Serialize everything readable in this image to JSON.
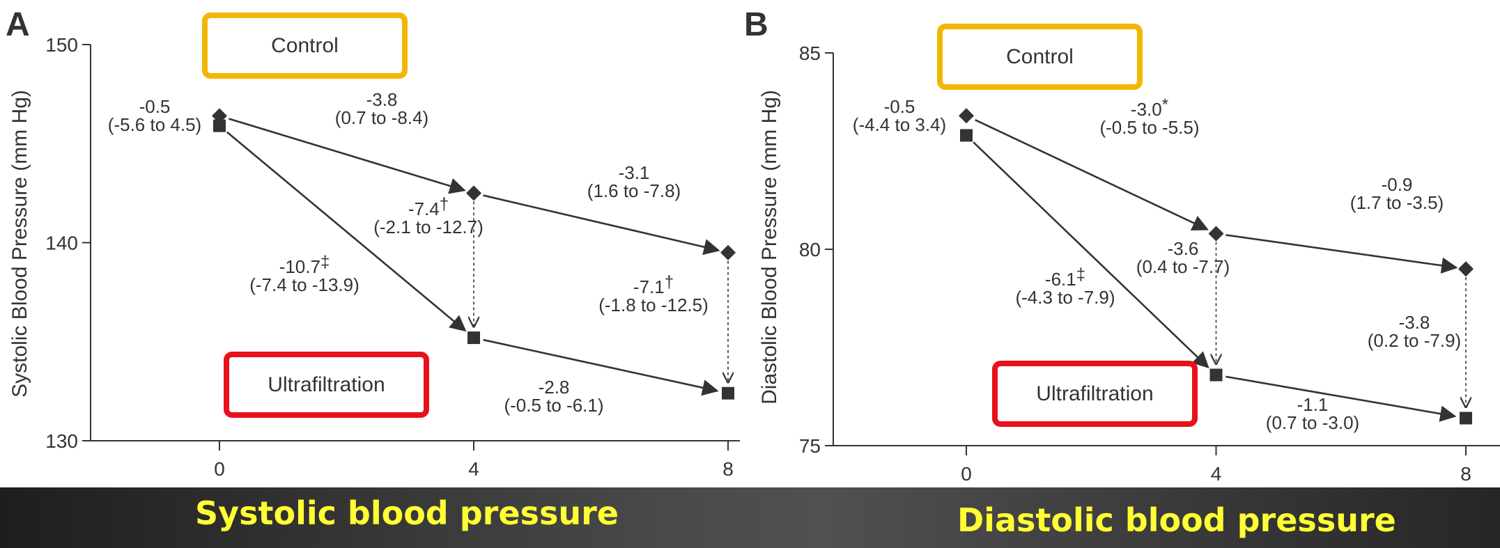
{
  "chart_data": [
    {
      "type": "line",
      "panel_label": "A",
      "ylabel": "Systolic Blood Pressure (mm Hg)",
      "xlabel": "",
      "x": [
        0,
        4,
        8
      ],
      "x_ticks": [
        "0",
        "4",
        "8"
      ],
      "ylim": [
        130,
        150
      ],
      "y_ticks": [
        "130",
        "140",
        "150"
      ],
      "legend_placement": "boxed labels near series",
      "series": [
        {
          "name": "Control",
          "marker": "diamond",
          "values": [
            146.4,
            142.5,
            139.5
          ]
        },
        {
          "name": "Ultrafiltration",
          "marker": "square",
          "values": [
            145.9,
            135.2,
            132.4
          ]
        }
      ],
      "annotations": [
        {
          "id": "a0",
          "lines": [
            "-0.5",
            "(-5.6 to 4.5)"
          ],
          "mark": ""
        },
        {
          "id": "a1",
          "lines": [
            "-3.8",
            "(0.7 to -8.4)"
          ],
          "mark": ""
        },
        {
          "id": "a2",
          "lines": [
            "-3.1",
            "(1.6 to -7.8)"
          ],
          "mark": ""
        },
        {
          "id": "a3",
          "lines": [
            "-7.4",
            "(-2.1 to -12.7)"
          ],
          "mark": "†"
        },
        {
          "id": "a4",
          "lines": [
            "-10.7",
            "(-7.4 to -13.9)"
          ],
          "mark": "‡"
        },
        {
          "id": "a5",
          "lines": [
            "-7.1",
            "(-1.8 to -12.5)"
          ],
          "mark": "†"
        },
        {
          "id": "a6",
          "lines": [
            "-2.8",
            "(-0.5 to -6.1)"
          ],
          "mark": ""
        }
      ]
    },
    {
      "type": "line",
      "panel_label": "B",
      "ylabel": "Diastolic Blood Pressure (mm Hg)",
      "xlabel": "",
      "x": [
        0,
        4,
        8
      ],
      "x_ticks": [
        "0",
        "4",
        "8"
      ],
      "ylim": [
        75,
        85
      ],
      "y_ticks": [
        "75",
        "80",
        "85"
      ],
      "legend_placement": "boxed labels near series",
      "series": [
        {
          "name": "Control",
          "marker": "diamond",
          "values": [
            83.4,
            80.4,
            79.5
          ]
        },
        {
          "name": "Ultrafiltration",
          "marker": "square",
          "values": [
            82.9,
            76.8,
            75.7
          ]
        }
      ],
      "annotations": [
        {
          "id": "b0",
          "lines": [
            "-0.5",
            "(-4.4 to 3.4)"
          ],
          "mark": ""
        },
        {
          "id": "b1",
          "lines": [
            "-3.0",
            "(-0.5 to -5.5)"
          ],
          "mark": "*"
        },
        {
          "id": "b2",
          "lines": [
            "-0.9",
            "(1.7 to -3.5)"
          ],
          "mark": ""
        },
        {
          "id": "b3",
          "lines": [
            "-3.6",
            "(0.4 to -7.7)"
          ],
          "mark": ""
        },
        {
          "id": "b4",
          "lines": [
            "-6.1",
            "(-4.3 to -7.9)"
          ],
          "mark": "‡"
        },
        {
          "id": "b5",
          "lines": [
            "-3.8",
            "(0.2 to -7.9)"
          ],
          "mark": ""
        },
        {
          "id": "b6",
          "lines": [
            "-1.1",
            "(0.7 to -3.0)"
          ],
          "mark": ""
        }
      ]
    }
  ],
  "captions": {
    "left": "Systolic blood pressure",
    "right": "Diastolic blood pressure"
  },
  "colors": {
    "axis": "#333333",
    "series": "#333333",
    "control_box": "#f2b705",
    "ultrafiltration_box": "#e8101a",
    "caption_text": "#ffff33"
  }
}
